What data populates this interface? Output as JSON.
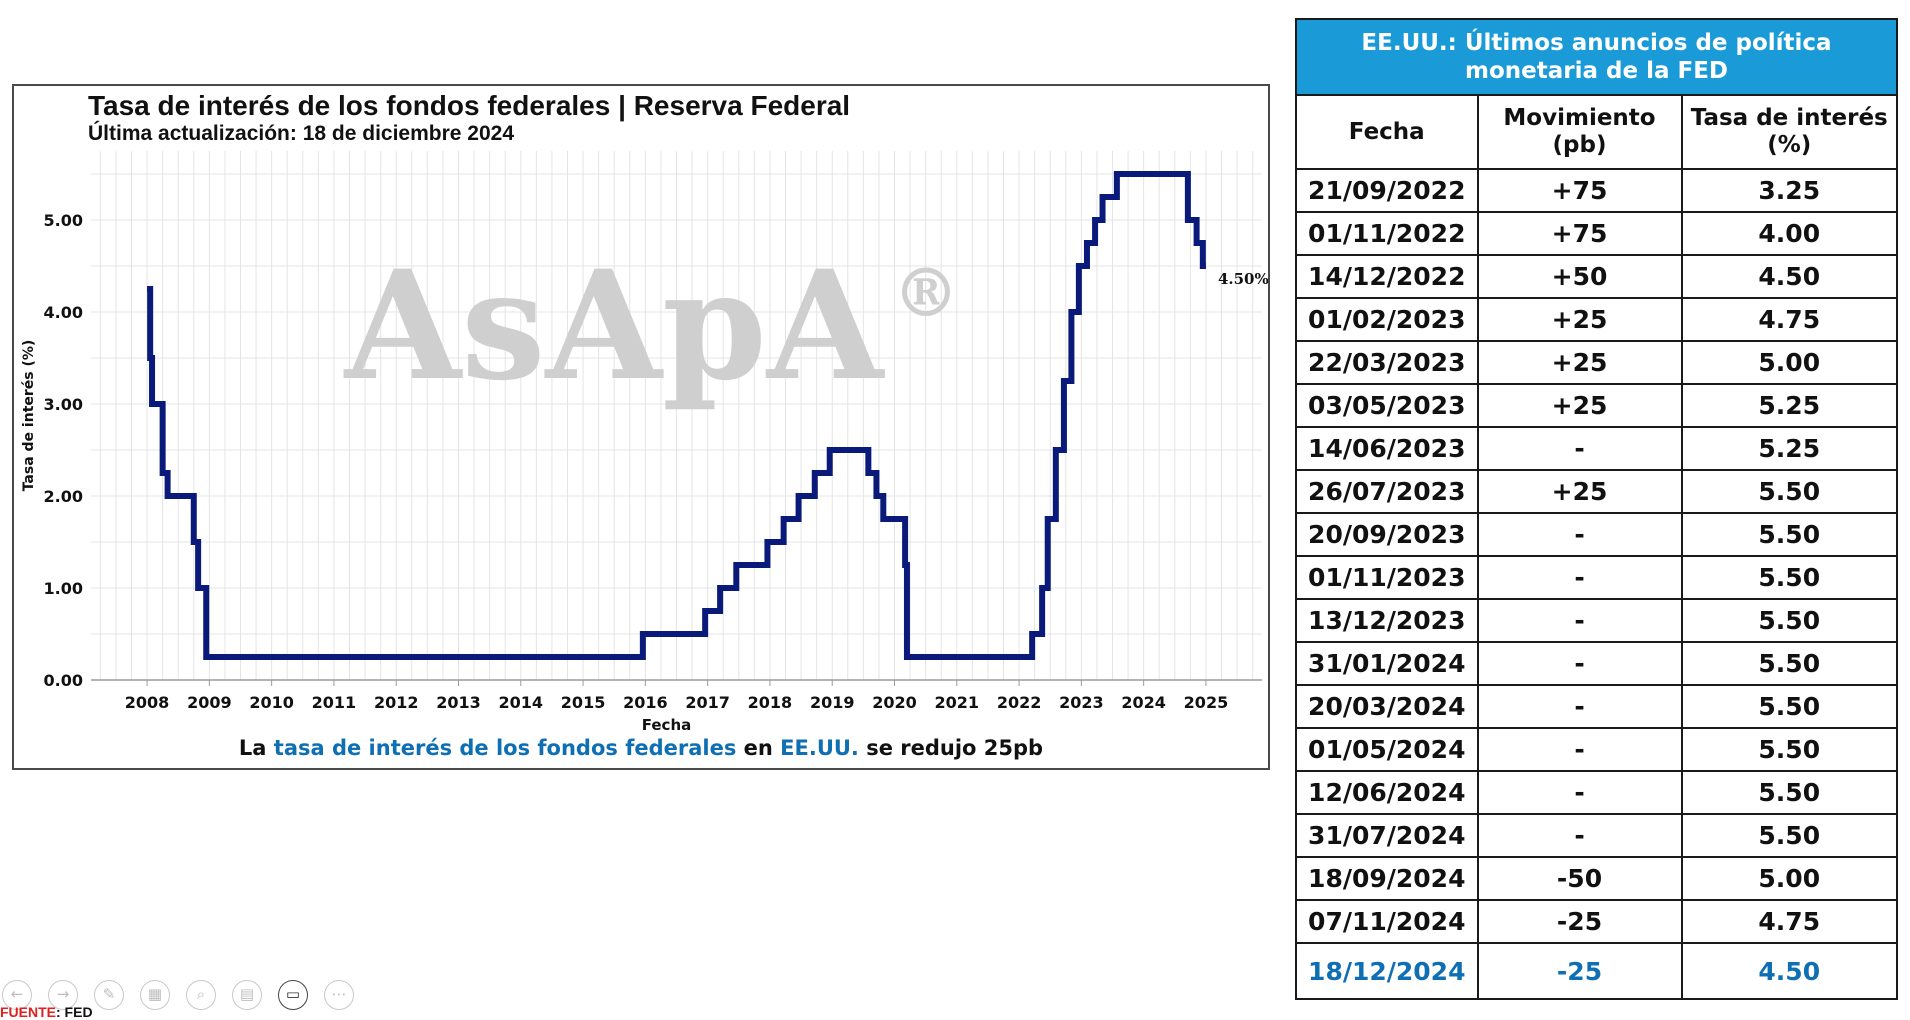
{
  "chart": {
    "title": "Tasa de interés de los fondos federales | Reserva Federal",
    "subtitle": "Última actualización: 18 de diciembre 2024",
    "watermark": "AsApA",
    "watermark_mark": "®",
    "end_label": "4.50%",
    "note": {
      "prefix": "La ",
      "link1": "tasa de interés de los fondos federales",
      "mid": " en ",
      "link2": "EE.UU.",
      "suffix": " se redujo 25pb"
    }
  },
  "chart_data": {
    "type": "line",
    "step": true,
    "title": "Tasa de interés de los fondos federales | Reserva Federal",
    "subtitle": "Última actualización: 18 de diciembre 2024",
    "xlabel": "Fecha",
    "ylabel": "Tasa de interés (%)",
    "xlim": [
      2007.1,
      2025.9
    ],
    "ylim": [
      0,
      5.75
    ],
    "xticks": [
      "2008",
      "2009",
      "2010",
      "2011",
      "2012",
      "2013",
      "2014",
      "2015",
      "2016",
      "2017",
      "2018",
      "2019",
      "2020",
      "2021",
      "2022",
      "2023",
      "2024",
      "2025"
    ],
    "yticks": [
      "0.00",
      "1.00",
      "2.00",
      "3.00",
      "4.00",
      "5.00"
    ],
    "grid": true,
    "line_color": "#0a1a7a",
    "series": [
      {
        "x": [
          2008.0,
          2008.05,
          2008.08,
          2008.25,
          2008.33,
          2008.75,
          2008.82,
          2008.95
        ],
        "y": [
          4.25,
          3.5,
          3.0,
          2.25,
          2.0,
          1.5,
          1.0,
          0.25
        ]
      },
      {
        "x": [
          2015.96,
          2016.96,
          2017.2,
          2017.46,
          2017.96,
          2018.22,
          2018.46,
          2018.72,
          2018.96,
          2019.58,
          2019.71,
          2019.82,
          2020.17,
          2020.2
        ],
        "y": [
          0.5,
          0.75,
          1.0,
          1.25,
          1.5,
          1.75,
          2.0,
          2.25,
          2.5,
          2.25,
          2.0,
          1.75,
          1.25,
          0.25
        ]
      },
      {
        "x": [
          2022.21,
          2022.37,
          2022.46,
          2022.59,
          2022.72,
          2022.84,
          2022.96,
          2023.09,
          2023.22,
          2023.34,
          2023.57,
          2024.71,
          2024.85,
          2024.95,
          2025.0
        ],
        "y": [
          0.5,
          1.0,
          1.75,
          2.5,
          3.25,
          4.0,
          4.5,
          4.75,
          5.0,
          5.25,
          5.5,
          5.0,
          4.75,
          4.5,
          4.5
        ]
      }
    ],
    "annotations": [
      {
        "text": "4.50%",
        "x": 2025.0,
        "y": 4.5
      }
    ]
  },
  "table": {
    "title": "EE.UU.: Últimos anuncios de política monetaria de la FED",
    "headers": [
      "Fecha",
      "Movimiento (pb)",
      "Tasa de interés (%)"
    ],
    "header_color": "#1a9bd7",
    "highlight_color": "#0f6fb3",
    "rows": [
      [
        "21/09/2022",
        "+75",
        "3.25"
      ],
      [
        "01/11/2022",
        "+75",
        "4.00"
      ],
      [
        "14/12/2022",
        "+50",
        "4.50"
      ],
      [
        "01/02/2023",
        "+25",
        "4.75"
      ],
      [
        "22/03/2023",
        "+25",
        "5.00"
      ],
      [
        "03/05/2023",
        "+25",
        "5.25"
      ],
      [
        "14/06/2023",
        "-",
        "5.25"
      ],
      [
        "26/07/2023",
        "+25",
        "5.50"
      ],
      [
        "20/09/2023",
        "-",
        "5.50"
      ],
      [
        "01/11/2023",
        "-",
        "5.50"
      ],
      [
        "13/12/2023",
        "-",
        "5.50"
      ],
      [
        "31/01/2024",
        "-",
        "5.50"
      ],
      [
        "20/03/2024",
        "-",
        "5.50"
      ],
      [
        "01/05/2024",
        "-",
        "5.50"
      ],
      [
        "12/06/2024",
        "-",
        "5.50"
      ],
      [
        "31/07/2024",
        "-",
        "5.50"
      ],
      [
        "18/09/2024",
        "-50",
        "5.00"
      ],
      [
        "07/11/2024",
        "-25",
        "4.75"
      ],
      [
        "18/12/2024",
        "-25",
        "4.50"
      ]
    ]
  },
  "toolbar": {
    "buttons": [
      {
        "name": "previous-slide-button",
        "icon": "arrow-left-icon",
        "glyph": "←"
      },
      {
        "name": "next-slide-button",
        "icon": "arrow-right-icon",
        "glyph": "→"
      },
      {
        "name": "pen-tool-button",
        "icon": "pen-icon",
        "glyph": "✎"
      },
      {
        "name": "slides-grid-button",
        "icon": "grid-icon",
        "glyph": "▦"
      },
      {
        "name": "zoom-button",
        "icon": "magnifier-icon",
        "glyph": "⌕"
      },
      {
        "name": "subtitles-button",
        "icon": "subtitles-icon",
        "glyph": "▤"
      },
      {
        "name": "camera-button",
        "icon": "camera-icon",
        "glyph": "▭"
      },
      {
        "name": "more-options-button",
        "icon": "ellipsis-icon",
        "glyph": "⋯"
      }
    ]
  },
  "source": {
    "label": "FUENTE",
    "value": ": FED"
  }
}
